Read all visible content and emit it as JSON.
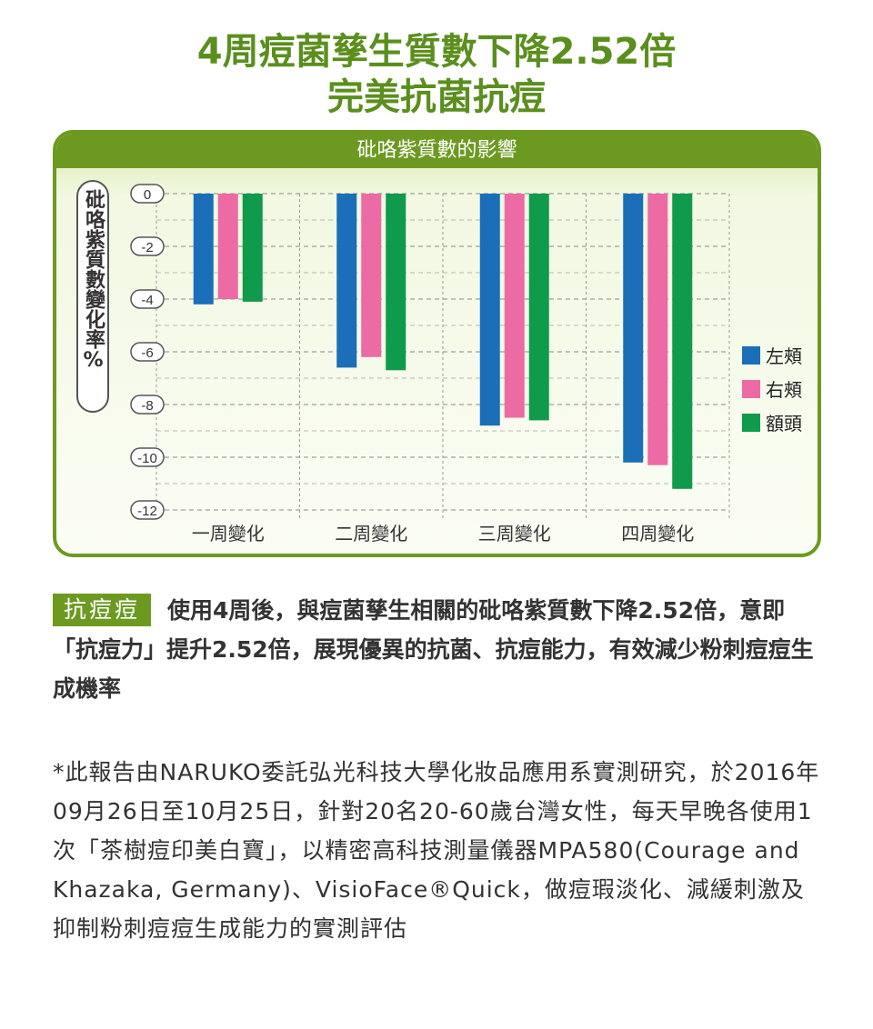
{
  "header": {
    "title_line1": "4周痘菌孳生質數下降2.52倍",
    "title_line2": "完美抗菌抗痘"
  },
  "colors": {
    "brand_green": "#6c9a21",
    "title_green": "#5a8f1e",
    "series_left": "#1a6fb8",
    "series_right": "#ec6ba4",
    "series_forehead": "#0f9a4c"
  },
  "chart_data": {
    "type": "bar",
    "title": "砒咯紫質數的影響",
    "ylabel": "砒咯紫質數變化率%",
    "xlabel": "",
    "categories": [
      "一周變化",
      "二周變化",
      "三周變化",
      "四周變化"
    ],
    "ylim": [
      -12,
      0
    ],
    "yticks": [
      0,
      -2,
      -4,
      -6,
      -8,
      -10,
      -12
    ],
    "series": [
      {
        "name": "左頰",
        "color": "#1a6fb8",
        "values": [
          -4.2,
          -6.6,
          -8.8,
          -10.2
        ]
      },
      {
        "name": "右頰",
        "color": "#ec6ba4",
        "values": [
          -4.0,
          -6.2,
          -8.5,
          -10.3
        ]
      },
      {
        "name": "額頭",
        "color": "#0f9a4c",
        "values": [
          -4.1,
          -6.7,
          -8.6,
          -11.2
        ]
      }
    ],
    "grid": true,
    "legend_position": "right"
  },
  "content": {
    "tag_label": "抗痘痘",
    "paragraph1": "使用4周後，與痘菌孳生相關的砒咯紫質數下降2.52倍，意即「抗痘力」提升2.52倍，展現優異的抗菌、抗痘能力，有效減少粉刺痘痘生成機率",
    "paragraph2": "*此報告由NARUKO委託弘光科技大學化妝品應用系實測研究，於2016年09月26日至10月25日，針對20名20-60歲台灣女性，每天早晚各使用1次「茶樹痘印美白寶」，以精密高科技測量儀器MPA580(Courage and Khazaka, Germany)、VisioFace®Quick，做痘瑕淡化、減緩刺激及抑制粉刺痘痘生成能力的實測評估"
  }
}
